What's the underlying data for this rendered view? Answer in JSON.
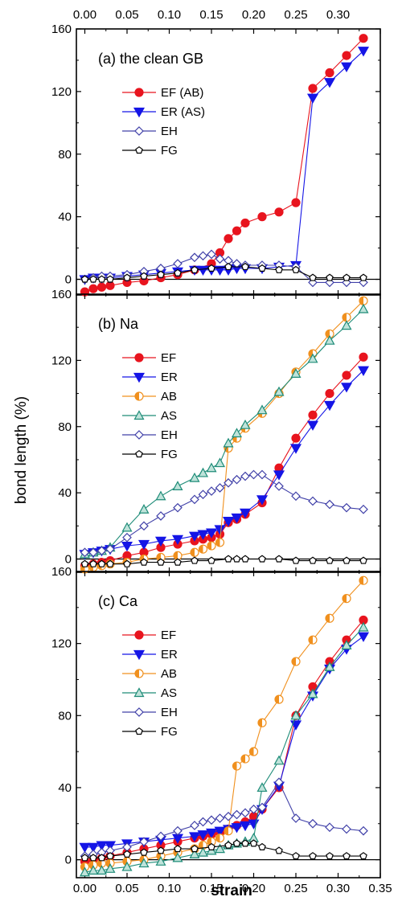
{
  "figure": {
    "ylabel": "bond length (%)",
    "xlabel": "strain",
    "xlim": [
      -0.01,
      0.35
    ],
    "xticks": [
      "0.00",
      "0.05",
      "0.10",
      "0.15",
      "0.20",
      "0.25",
      "0.30",
      "0.35"
    ],
    "top_xticks": [
      "0.00",
      "0.05",
      "0.10",
      "0.15",
      "0.20",
      "0.25",
      "0.30"
    ]
  },
  "series_styles": {
    "EF": {
      "color": "#e8141e",
      "marker": "circle"
    },
    "ER": {
      "color": "#1515e6",
      "marker": "triangle-down"
    },
    "AB": {
      "color": "#f0901e",
      "marker": "half-circle"
    },
    "AS": {
      "color": "#1e8c78",
      "marker": "triangle-up"
    },
    "EH": {
      "color": "#4040a8",
      "marker": "diamond"
    },
    "FG": {
      "color": "#000000",
      "marker": "pentagon"
    }
  },
  "chart_data": [
    {
      "type": "line",
      "title": "(a)  the clean GB",
      "ylim": [
        -10,
        160
      ],
      "yticks": [
        "0",
        "40",
        "80",
        "120",
        "160"
      ],
      "legend_position": "top-left",
      "series": [
        {
          "name": "EF (AB)",
          "style": "EF",
          "x": [
            0.0,
            0.01,
            0.02,
            0.03,
            0.05,
            0.07,
            0.09,
            0.11,
            0.13,
            0.15,
            0.16,
            0.17,
            0.18,
            0.19,
            0.21,
            0.23,
            0.25,
            0.27,
            0.29,
            0.31,
            0.33
          ],
          "y": [
            -8,
            -6,
            -5,
            -4,
            -2,
            -1,
            1,
            3,
            6,
            10,
            17,
            26,
            31,
            36,
            40,
            43,
            49,
            122,
            132,
            143,
            154
          ]
        },
        {
          "name": "ER (AS)",
          "style": "ER",
          "x": [
            0.0,
            0.01,
            0.02,
            0.03,
            0.05,
            0.07,
            0.09,
            0.11,
            0.13,
            0.14,
            0.15,
            0.16,
            0.17,
            0.18,
            0.19,
            0.21,
            0.23,
            0.25,
            0.27,
            0.29,
            0.31,
            0.33
          ],
          "y": [
            0,
            1,
            1,
            1,
            2,
            3,
            4,
            5,
            6,
            6,
            6,
            6,
            6,
            7,
            7,
            7,
            8,
            9,
            116,
            126,
            136,
            146
          ]
        },
        {
          "name": "EH",
          "style": "EH",
          "x": [
            0.0,
            0.01,
            0.02,
            0.03,
            0.05,
            0.07,
            0.09,
            0.11,
            0.13,
            0.14,
            0.15,
            0.16,
            0.17,
            0.18,
            0.19,
            0.21,
            0.23,
            0.25,
            0.27,
            0.29,
            0.31,
            0.33
          ],
          "y": [
            0,
            1,
            2,
            2,
            3,
            5,
            7,
            10,
            14,
            15,
            16,
            13,
            12,
            10,
            9,
            9,
            9,
            8,
            -2,
            -2,
            -2,
            -2
          ]
        },
        {
          "name": "FG",
          "style": "FG",
          "x": [
            0.0,
            0.01,
            0.02,
            0.03,
            0.05,
            0.07,
            0.09,
            0.11,
            0.13,
            0.15,
            0.17,
            0.19,
            0.21,
            0.23,
            0.25,
            0.27,
            0.29,
            0.31,
            0.33
          ],
          "y": [
            0,
            0,
            0,
            0,
            1,
            2,
            3,
            4,
            6,
            7,
            8,
            8,
            7,
            6,
            6,
            1,
            1,
            1,
            1
          ]
        }
      ]
    },
    {
      "type": "line",
      "title": "(b)  Na",
      "ylim": [
        -8,
        160
      ],
      "yticks": [
        "0",
        "40",
        "80",
        "120",
        "160"
      ],
      "legend_position": "top-left",
      "series": [
        {
          "name": "EF",
          "style": "EF",
          "x": [
            0.0,
            0.01,
            0.02,
            0.03,
            0.05,
            0.07,
            0.09,
            0.11,
            0.13,
            0.14,
            0.15,
            0.16,
            0.17,
            0.18,
            0.19,
            0.21,
            0.23,
            0.25,
            0.27,
            0.29,
            0.31,
            0.33
          ],
          "y": [
            -4,
            -3,
            -2,
            -1,
            2,
            4,
            7,
            9,
            11,
            12,
            13,
            15,
            22,
            24,
            27,
            34,
            55,
            73,
            87,
            100,
            111,
            122
          ]
        },
        {
          "name": "ER",
          "style": "ER",
          "x": [
            0.0,
            0.01,
            0.02,
            0.03,
            0.05,
            0.07,
            0.09,
            0.11,
            0.13,
            0.14,
            0.15,
            0.16,
            0.17,
            0.18,
            0.19,
            0.21,
            0.23,
            0.25,
            0.27,
            0.29,
            0.31,
            0.33
          ],
          "y": [
            3,
            4,
            5,
            6,
            8,
            9,
            11,
            12,
            14,
            15,
            16,
            18,
            23,
            25,
            28,
            36,
            51,
            67,
            81,
            93,
            104,
            114
          ]
        },
        {
          "name": "AB",
          "style": "AB",
          "x": [
            0.0,
            0.01,
            0.02,
            0.03,
            0.05,
            0.07,
            0.09,
            0.11,
            0.13,
            0.14,
            0.15,
            0.16,
            0.17,
            0.18,
            0.19,
            0.21,
            0.23,
            0.25,
            0.27,
            0.29,
            0.31,
            0.33
          ],
          "y": [
            -6,
            -5,
            -4,
            -3,
            -2,
            0,
            1,
            2,
            4,
            6,
            8,
            10,
            67,
            73,
            79,
            88,
            100,
            113,
            124,
            136,
            146,
            156
          ]
        },
        {
          "name": "AS",
          "style": "AS",
          "x": [
            0.0,
            0.01,
            0.02,
            0.03,
            0.05,
            0.07,
            0.09,
            0.11,
            0.13,
            0.14,
            0.15,
            0.16,
            0.17,
            0.18,
            0.19,
            0.21,
            0.23,
            0.25,
            0.27,
            0.29,
            0.31,
            0.33
          ],
          "y": [
            3,
            4,
            5,
            7,
            19,
            30,
            38,
            44,
            49,
            52,
            55,
            58,
            70,
            76,
            81,
            90,
            101,
            112,
            121,
            132,
            141,
            151
          ]
        },
        {
          "name": "EH",
          "style": "EH",
          "x": [
            0.0,
            0.01,
            0.02,
            0.03,
            0.05,
            0.07,
            0.09,
            0.11,
            0.13,
            0.14,
            0.15,
            0.16,
            0.17,
            0.18,
            0.19,
            0.2,
            0.21,
            0.23,
            0.25,
            0.27,
            0.29,
            0.31,
            0.33
          ],
          "y": [
            4,
            4,
            5,
            6,
            13,
            20,
            26,
            31,
            36,
            39,
            41,
            43,
            46,
            48,
            50,
            51,
            51,
            44,
            38,
            35,
            33,
            31,
            30
          ]
        },
        {
          "name": "FG",
          "style": "FG",
          "x": [
            0.0,
            0.01,
            0.02,
            0.03,
            0.05,
            0.07,
            0.09,
            0.11,
            0.13,
            0.15,
            0.17,
            0.18,
            0.19,
            0.21,
            0.23,
            0.25,
            0.27,
            0.29,
            0.31,
            0.33
          ],
          "y": [
            -3,
            -3,
            -3,
            -3,
            -3,
            -2,
            -2,
            -2,
            -1,
            -1,
            0,
            0,
            0,
            0,
            0,
            -1,
            -1,
            -1,
            -1,
            -1
          ]
        }
      ]
    },
    {
      "type": "line",
      "title": "(c)  Ca",
      "ylim": [
        -10,
        160
      ],
      "yticks": [
        "0",
        "40",
        "80",
        "120",
        "160"
      ],
      "legend_position": "top-left",
      "series": [
        {
          "name": "EF",
          "style": "EF",
          "x": [
            0.0,
            0.01,
            0.02,
            0.03,
            0.05,
            0.07,
            0.09,
            0.11,
            0.13,
            0.14,
            0.15,
            0.16,
            0.17,
            0.18,
            0.19,
            0.2,
            0.21,
            0.23,
            0.25,
            0.27,
            0.29,
            0.31,
            0.33
          ],
          "y": [
            -1,
            0,
            1,
            2,
            4,
            6,
            8,
            10,
            12,
            13,
            14,
            15,
            17,
            19,
            21,
            24,
            28,
            40,
            80,
            96,
            110,
            122,
            133
          ]
        },
        {
          "name": "ER",
          "style": "ER",
          "x": [
            0.0,
            0.01,
            0.02,
            0.03,
            0.05,
            0.07,
            0.09,
            0.11,
            0.13,
            0.14,
            0.15,
            0.16,
            0.17,
            0.18,
            0.19,
            0.2,
            0.21,
            0.23,
            0.25,
            0.27,
            0.29,
            0.31,
            0.33
          ],
          "y": [
            7,
            7,
            8,
            8,
            9,
            10,
            11,
            12,
            13,
            14,
            15,
            16,
            17,
            18,
            19,
            20,
            28,
            41,
            75,
            91,
            106,
            117,
            124
          ]
        },
        {
          "name": "AB",
          "style": "AB",
          "x": [
            0.0,
            0.01,
            0.02,
            0.03,
            0.05,
            0.07,
            0.09,
            0.11,
            0.13,
            0.14,
            0.15,
            0.16,
            0.17,
            0.18,
            0.19,
            0.2,
            0.21,
            0.23,
            0.25,
            0.27,
            0.29,
            0.31,
            0.33
          ],
          "y": [
            -4,
            -3,
            -2,
            -2,
            -1,
            0,
            2,
            4,
            6,
            8,
            10,
            12,
            16,
            52,
            56,
            60,
            76,
            89,
            110,
            122,
            134,
            145,
            155
          ]
        },
        {
          "name": "AS",
          "style": "AS",
          "x": [
            0.0,
            0.01,
            0.02,
            0.03,
            0.05,
            0.07,
            0.09,
            0.11,
            0.13,
            0.14,
            0.15,
            0.16,
            0.17,
            0.18,
            0.19,
            0.2,
            0.21,
            0.23,
            0.25,
            0.27,
            0.29,
            0.31,
            0.33
          ],
          "y": [
            -7,
            -6,
            -6,
            -5,
            -4,
            -2,
            -1,
            1,
            3,
            4,
            5,
            6,
            8,
            9,
            10,
            12,
            40,
            55,
            80,
            92,
            107,
            119,
            129
          ]
        },
        {
          "name": "EH",
          "style": "EH",
          "x": [
            0.0,
            0.01,
            0.02,
            0.03,
            0.05,
            0.07,
            0.09,
            0.11,
            0.13,
            0.14,
            0.15,
            0.16,
            0.17,
            0.18,
            0.19,
            0.2,
            0.21,
            0.23,
            0.25,
            0.27,
            0.29,
            0.31,
            0.33
          ],
          "y": [
            2,
            3,
            4,
            5,
            7,
            10,
            13,
            16,
            19,
            21,
            22,
            23,
            24,
            25,
            26,
            28,
            29,
            43,
            23,
            20,
            18,
            17,
            16
          ]
        },
        {
          "name": "FG",
          "style": "FG",
          "x": [
            0.0,
            0.01,
            0.02,
            0.03,
            0.05,
            0.07,
            0.09,
            0.11,
            0.13,
            0.15,
            0.17,
            0.18,
            0.19,
            0.2,
            0.21,
            0.23,
            0.25,
            0.27,
            0.29,
            0.31,
            0.33
          ],
          "y": [
            1,
            1,
            1,
            2,
            3,
            4,
            5,
            6,
            6,
            7,
            8,
            9,
            9,
            9,
            7,
            5,
            2,
            2,
            2,
            2,
            2
          ]
        }
      ]
    }
  ]
}
